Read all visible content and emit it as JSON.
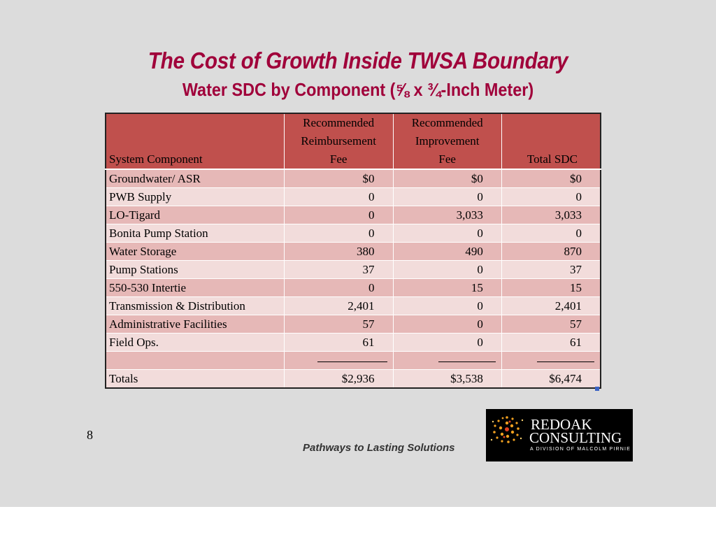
{
  "slide": {
    "title": "The Cost of Growth Inside TWSA Boundary",
    "subtitle": "Water SDC by Component (⅝ x ¾-Inch Meter)",
    "page_number": "8",
    "tagline": "Pathways to Lasting Solutions"
  },
  "logo": {
    "line1": "REDOAK",
    "line2": "CONSULTING",
    "division": "A DIVISION OF MALCOLM PIRNIE"
  },
  "table": {
    "headers": {
      "component": "System Component",
      "reimb": [
        "Recommended",
        "Reimbursement",
        "Fee"
      ],
      "improv": [
        "Recommended",
        "Improvement",
        "Fee"
      ],
      "total": "Total SDC"
    },
    "rows": [
      {
        "component": "Groundwater/ ASR",
        "reimb": "$0",
        "improv": "$0",
        "total": "$0"
      },
      {
        "component": "PWB Supply",
        "reimb": "0",
        "improv": "0",
        "total": "0"
      },
      {
        "component": "LO-Tigard",
        "reimb": "0",
        "improv": "3,033",
        "total": "3,033"
      },
      {
        "component": "Bonita Pump Station",
        "reimb": "0",
        "improv": "0",
        "total": "0"
      },
      {
        "component": "Water Storage",
        "reimb": "380",
        "improv": "490",
        "total": "870"
      },
      {
        "component": "Pump Stations",
        "reimb": "37",
        "improv": "0",
        "total": "37"
      },
      {
        "component": "550-530 Intertie",
        "reimb": "0",
        "improv": "15",
        "total": "15"
      },
      {
        "component": "Transmission & Distribution",
        "reimb": "2,401",
        "improv": "0",
        "total": "2,401"
      },
      {
        "component": "Administrative Facilities",
        "reimb": "57",
        "improv": "0",
        "total": "57"
      },
      {
        "component": "Field Ops.",
        "reimb": "61",
        "improv": "0",
        "total": "61"
      }
    ],
    "totals": {
      "component": "Totals",
      "reimb": "$2,936",
      "improv": "$3,538",
      "total": "$6,474"
    }
  },
  "colors": {
    "title": "#a0003a",
    "header_bg": "#c0504d",
    "row_dark": "#e6b8b7",
    "row_light": "#f2dcdb",
    "slide_bg": "#dcdcdc"
  }
}
